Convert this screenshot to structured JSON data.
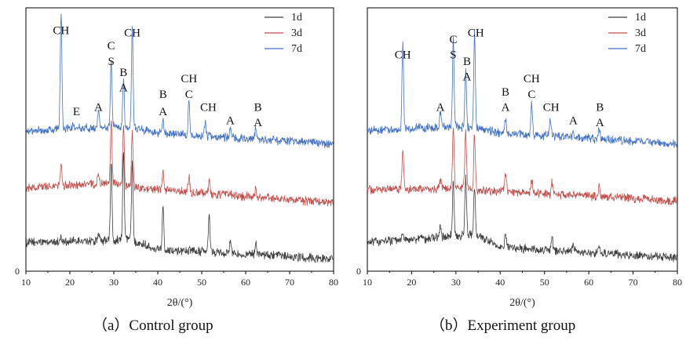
{
  "figure": {
    "captions": [
      "（a）Control group",
      "（b）Experiment group"
    ]
  },
  "colors": {
    "1d": "#3d3d3d",
    "3d": "#c0504d",
    "7d": "#4472c4"
  },
  "chart_data": [
    {
      "type": "line",
      "title": "",
      "xlabel": "2θ/(°)",
      "ylabel": "",
      "xlim": [
        10,
        80
      ],
      "ylim": [
        0,
        120
      ],
      "x_ticks": [
        "10",
        "20",
        "30",
        "40",
        "50",
        "60",
        "70",
        "80"
      ],
      "y_ticks": [
        "0"
      ],
      "grid": false,
      "legend": {
        "placement": "top-right",
        "entries": [
          "1d",
          "3d",
          "7d"
        ]
      },
      "series": [
        {
          "name": "1d",
          "baseline": [
            [
              10,
              13
            ],
            [
              30,
              14
            ],
            [
              33,
              15
            ],
            [
              40,
              10
            ],
            [
              80,
              5.5
            ]
          ],
          "peaks": [
            [
              18.0,
              2
            ],
            [
              26.5,
              4
            ],
            [
              29.4,
              35
            ],
            [
              32.2,
              40
            ],
            [
              34.2,
              35
            ],
            [
              41.2,
              20
            ],
            [
              51.7,
              17
            ],
            [
              56.5,
              6
            ],
            [
              62.3,
              6
            ]
          ]
        },
        {
          "name": "3d",
          "baseline": [
            [
              10,
              38
            ],
            [
              30,
              40
            ],
            [
              35,
              38
            ],
            [
              80,
              31
            ]
          ],
          "peaks": [
            [
              18.0,
              10
            ],
            [
              26.5,
              5
            ],
            [
              29.4,
              28
            ],
            [
              32.2,
              27
            ],
            [
              34.2,
              26
            ],
            [
              41.2,
              8
            ],
            [
              47.1,
              7
            ],
            [
              51.7,
              6
            ],
            [
              62.3,
              4
            ]
          ]
        },
        {
          "name": "7d",
          "baseline": [
            [
              10,
              64
            ],
            [
              30,
              66
            ],
            [
              35,
              65
            ],
            [
              40,
              63
            ],
            [
              80,
              58
            ]
          ],
          "peaks": [
            [
              18.0,
              54
            ],
            [
              20.8,
              2
            ],
            [
              26.5,
              7
            ],
            [
              29.4,
              31
            ],
            [
              32.2,
              22
            ],
            [
              34.2,
              48
            ],
            [
              41.2,
              7
            ],
            [
              47.1,
              16
            ],
            [
              50.8,
              7
            ],
            [
              56.5,
              4
            ],
            [
              62.3,
              5
            ]
          ]
        }
      ],
      "annotations": [
        {
          "text": "CH",
          "x": 18.0,
          "y": 108
        },
        {
          "text": "E",
          "x": 21.5,
          "y": 71
        },
        {
          "text": "A",
          "x": 26.5,
          "y": 73
        },
        {
          "text": "C",
          "x": 29.4,
          "y": 101
        },
        {
          "text": "S",
          "x": 29.4,
          "y": 94
        },
        {
          "text": "B",
          "x": 32.2,
          "y": 89
        },
        {
          "text": "A",
          "x": 32.2,
          "y": 82
        },
        {
          "text": "CH",
          "x": 34.2,
          "y": 107
        },
        {
          "text": "B",
          "x": 41.2,
          "y": 79
        },
        {
          "text": "A",
          "x": 41.2,
          "y": 71
        },
        {
          "text": "CH",
          "x": 47.1,
          "y": 86
        },
        {
          "text": "C",
          "x": 47.1,
          "y": 79
        },
        {
          "text": "CH",
          "x": 51.5,
          "y": 73
        },
        {
          "text": "A",
          "x": 56.5,
          "y": 67
        },
        {
          "text": "B",
          "x": 62.8,
          "y": 73
        },
        {
          "text": "A",
          "x": 62.8,
          "y": 66
        }
      ]
    },
    {
      "type": "line",
      "title": "",
      "xlabel": "2θ/(°)",
      "ylabel": "",
      "xlim": [
        10,
        80
      ],
      "ylim": [
        0,
        120
      ],
      "x_ticks": [
        "10",
        "20",
        "30",
        "40",
        "50",
        "60",
        "70",
        "80"
      ],
      "y_ticks": [
        "0"
      ],
      "grid": false,
      "legend": {
        "placement": "top-right",
        "entries": [
          "1d",
          "3d",
          "7d"
        ]
      },
      "series": [
        {
          "name": "1d",
          "baseline": [
            [
              10,
              13
            ],
            [
              30,
              16
            ],
            [
              34,
              17
            ],
            [
              40,
              11
            ],
            [
              80,
              6
            ]
          ],
          "peaks": [
            [
              18.0,
              4
            ],
            [
              26.5,
              5
            ],
            [
              29.4,
              25
            ],
            [
              32.2,
              26
            ],
            [
              34.2,
              22
            ],
            [
              41.2,
              7
            ],
            [
              51.7,
              6
            ],
            [
              56.5,
              3
            ],
            [
              62.3,
              4
            ]
          ]
        },
        {
          "name": "3d",
          "baseline": [
            [
              10,
              37
            ],
            [
              30,
              38
            ],
            [
              35,
              37
            ],
            [
              80,
              32
            ]
          ],
          "peaks": [
            [
              18.0,
              19
            ],
            [
              26.5,
              4
            ],
            [
              29.4,
              28
            ],
            [
              32.2,
              27
            ],
            [
              34.2,
              26
            ],
            [
              41.2,
              8
            ],
            [
              47.1,
              6
            ],
            [
              51.7,
              5
            ],
            [
              62.3,
              4
            ]
          ]
        },
        {
          "name": "7d",
          "baseline": [
            [
              10,
              64
            ],
            [
              30,
              66
            ],
            [
              35,
              65
            ],
            [
              40,
              63
            ],
            [
              80,
              58
            ]
          ],
          "peaks": [
            [
              18.0,
              39
            ],
            [
              26.5,
              7
            ],
            [
              29.4,
              40
            ],
            [
              32.2,
              26
            ],
            [
              34.2,
              43
            ],
            [
              41.2,
              7
            ],
            [
              47.1,
              14
            ],
            [
              51.3,
              8
            ],
            [
              56.5,
              3
            ],
            [
              62.3,
              5
            ]
          ]
        }
      ],
      "annotations": [
        {
          "text": "CH",
          "x": 18.0,
          "y": 97
        },
        {
          "text": "A",
          "x": 26.5,
          "y": 73
        },
        {
          "text": "C",
          "x": 29.4,
          "y": 104
        },
        {
          "text": "S",
          "x": 29.4,
          "y": 97
        },
        {
          "text": "B",
          "x": 32.5,
          "y": 94
        },
        {
          "text": "A",
          "x": 32.5,
          "y": 87
        },
        {
          "text": "CH",
          "x": 34.5,
          "y": 107
        },
        {
          "text": "B",
          "x": 41.2,
          "y": 80
        },
        {
          "text": "A",
          "x": 41.2,
          "y": 73
        },
        {
          "text": "CH",
          "x": 47.1,
          "y": 86
        },
        {
          "text": "C",
          "x": 47.1,
          "y": 79
        },
        {
          "text": "CH",
          "x": 51.5,
          "y": 73
        },
        {
          "text": "A",
          "x": 56.5,
          "y": 67
        },
        {
          "text": "B",
          "x": 62.5,
          "y": 73
        },
        {
          "text": "A",
          "x": 62.5,
          "y": 66
        }
      ]
    }
  ]
}
